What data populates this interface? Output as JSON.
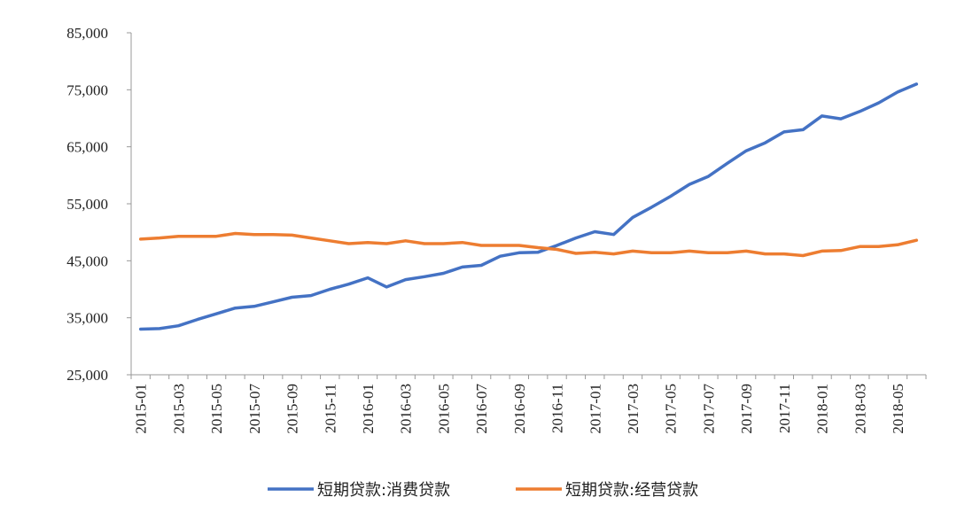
{
  "chart_data": {
    "type": "line",
    "title": "",
    "xlabel": "",
    "ylabel": "",
    "ylim": [
      25000,
      85000
    ],
    "yticks": [
      "85,000",
      "75,000",
      "65,000",
      "55,000",
      "45,000",
      "35,000",
      "25,000"
    ],
    "ytick_values": [
      85000,
      75000,
      65000,
      55000,
      45000,
      35000,
      25000
    ],
    "x": [
      "2015-01",
      "2015-02",
      "2015-03",
      "2015-04",
      "2015-05",
      "2015-06",
      "2015-07",
      "2015-08",
      "2015-09",
      "2015-10",
      "2015-11",
      "2015-12",
      "2016-01",
      "2016-02",
      "2016-03",
      "2016-04",
      "2016-05",
      "2016-06",
      "2016-07",
      "2016-08",
      "2016-09",
      "2016-10",
      "2016-11",
      "2016-12",
      "2017-01",
      "2017-02",
      "2017-03",
      "2017-04",
      "2017-05",
      "2017-06",
      "2017-07",
      "2017-08",
      "2017-09",
      "2017-10",
      "2017-11",
      "2017-12",
      "2018-01",
      "2018-02",
      "2018-03",
      "2018-04",
      "2018-05",
      "2018-06"
    ],
    "xtick_labels": [
      "2015-01",
      "2015-03",
      "2015-05",
      "2015-07",
      "2015-09",
      "2015-11",
      "2016-01",
      "2016-03",
      "2016-05",
      "2016-07",
      "2016-09",
      "2016-11",
      "2017-01",
      "2017-03",
      "2017-05",
      "2017-07",
      "2017-09",
      "2017-11",
      "2018-01",
      "2018-03",
      "2018-05"
    ],
    "series": [
      {
        "name": "短期贷款:消费贷款",
        "color": "#4472c4",
        "values": [
          33000,
          33100,
          33600,
          34700,
          35700,
          36700,
          37000,
          37800,
          38600,
          38900,
          40000,
          40900,
          42000,
          40400,
          41700,
          42200,
          42800,
          43900,
          44200,
          45800,
          46400,
          46500,
          47700,
          49000,
          50100,
          49600,
          52600,
          54400,
          56300,
          58400,
          59800,
          62100,
          64300,
          65700,
          67600,
          68000,
          70400,
          69900,
          71200,
          72700,
          74600,
          76000
        ]
      },
      {
        "name": "短期贷款:经营贷款",
        "color": "#ed7d31",
        "values": [
          48800,
          49000,
          49300,
          49300,
          49300,
          49800,
          49600,
          49600,
          49500,
          49000,
          48500,
          48000,
          48200,
          48000,
          48500,
          48000,
          48000,
          48200,
          47700,
          47700,
          47700,
          47300,
          47000,
          46300,
          46500,
          46200,
          46700,
          46400,
          46400,
          46700,
          46400,
          46400,
          46700,
          46200,
          46200,
          45900,
          46700,
          46800,
          47500,
          47500,
          47800,
          48600
        ]
      }
    ],
    "legend_position": "bottom",
    "grid": false
  }
}
